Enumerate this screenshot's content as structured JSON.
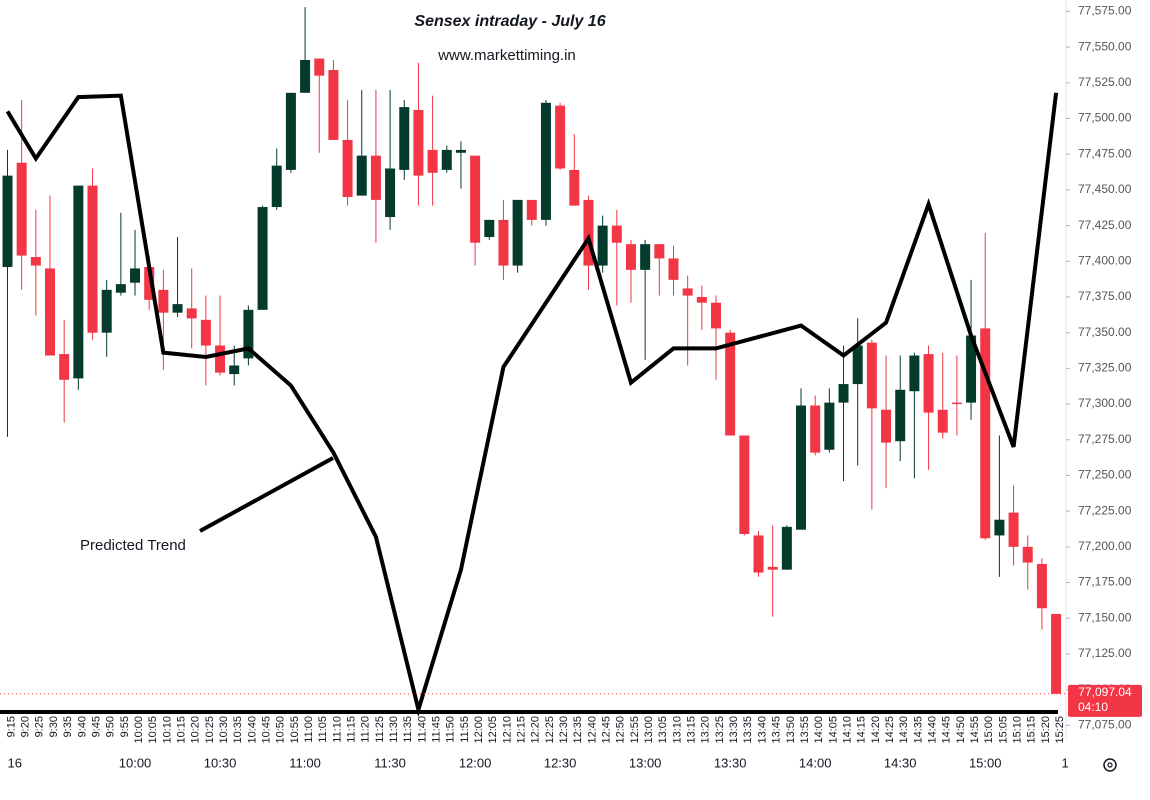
{
  "chart_data": {
    "type": "candlestick",
    "title": "Sensex intraday - July 16",
    "subtitle": "www.markettiming.in",
    "annotation": "Predicted Trend",
    "up_color": "#053b2d",
    "down_color": "#f23645",
    "categories": [
      "9:15",
      "9:20",
      "9:25",
      "9:30",
      "9:35",
      "9:40",
      "9:45",
      "9:50",
      "9:55",
      "10:00",
      "10:05",
      "10:10",
      "10:15",
      "10:20",
      "10:25",
      "10:30",
      "10:35",
      "10:40",
      "10:45",
      "10:50",
      "10:55",
      "11:00",
      "11:05",
      "11:10",
      "11:15",
      "11:20",
      "11:25",
      "11:30",
      "11:35",
      "11:40",
      "11:45",
      "11:50",
      "11:55",
      "12:00",
      "12:05",
      "12:10",
      "12:15",
      "12:20",
      "12:25",
      "12:30",
      "12:35",
      "12:40",
      "12:45",
      "12:50",
      "12:55",
      "13:00",
      "13:05",
      "13:10",
      "13:15",
      "13:20",
      "13:25",
      "13:30",
      "13:35",
      "13:40",
      "13:45",
      "13:50",
      "13:55",
      "14:00",
      "14:05",
      "14:10",
      "14:15",
      "14:20",
      "14:25",
      "14:30",
      "14:35",
      "14:40",
      "14:45",
      "14:50",
      "14:55",
      "15:00",
      "15:05",
      "15:10",
      "15:15",
      "15:20",
      "15:25"
    ],
    "open": [
      77396,
      77469,
      77403,
      77395,
      77335,
      77318,
      77453,
      77350,
      77378,
      77385,
      77396,
      77380,
      77364,
      77367,
      77359,
      77341,
      77321,
      77332,
      77366,
      77438,
      77464,
      77518,
      77542,
      77534,
      77485,
      77446,
      77474,
      77431,
      77464,
      77506,
      77478,
      77464,
      77476,
      77474,
      77417,
      77429,
      77397,
      77443,
      77429,
      77509,
      77464,
      77443,
      77397,
      77425,
      77412,
      77394,
      77412,
      77402,
      77381,
      77375,
      77371,
      77350,
      77278,
      77208,
      77186,
      77184,
      77212,
      77299,
      77268,
      77301,
      77314,
      77343,
      77296,
      77274,
      77309,
      77335,
      77296,
      77301,
      77301,
      77353,
      77208,
      77224,
      77200,
      77188,
      77153
    ],
    "high": [
      77478,
      77513,
      77436,
      77446,
      77359,
      77453,
      77465,
      77387,
      77434,
      77422,
      77404,
      77394,
      77417,
      77395,
      77376,
      77376,
      77341,
      77369,
      77439,
      77479,
      77518,
      77578,
      77542,
      77541,
      77513,
      77520,
      77520,
      77520,
      77513,
      77539,
      77516,
      77481,
      77484,
      77474,
      77429,
      77443,
      77443,
      77443,
      77513,
      77511,
      77489,
      77446,
      77432,
      77436,
      77415,
      77415,
      77412,
      77411,
      77390,
      77383,
      77376,
      77352,
      77278,
      77211,
      77215,
      77215,
      77311,
      77306,
      77311,
      77341,
      77360,
      77345,
      77334,
      77334,
      77336,
      77341,
      77336,
      77334,
      77387,
      77420,
      77278,
      77243,
      77208,
      77192,
      77153
    ],
    "low": [
      77277,
      77380,
      77362,
      77334,
      77287,
      77310,
      77345,
      77333,
      77376,
      77376,
      77366,
      77324,
      77361,
      77339,
      77313,
      77320,
      77313,
      77327,
      77366,
      77436,
      77462,
      77518,
      77476,
      77485,
      77439,
      77446,
      77413,
      77422,
      77457,
      77439,
      77439,
      77462,
      77451,
      77397,
      77415,
      77387,
      77392,
      77425,
      77425,
      77464,
      77439,
      77380,
      77392,
      77369,
      77371,
      77331,
      77376,
      77376,
      77327,
      77352,
      77317,
      77278,
      77208,
      77179,
      77151,
      77184,
      77212,
      77264,
      77266,
      77246,
      77257,
      77226,
      77241,
      77260,
      77248,
      77254,
      77276,
      77278,
      77289,
      77205,
      77179,
      77187,
      77170,
      77142,
      77097.04
    ],
    "close": [
      77460,
      77404,
      77397,
      77334,
      77317,
      77453,
      77350,
      77380,
      77384,
      77395,
      77373,
      77364,
      77370,
      77360,
      77341,
      77322,
      77327,
      77366,
      77438,
      77467,
      77518,
      77541,
      77530,
      77485,
      77445,
      77474,
      77443,
      77465,
      77508,
      77460,
      77462,
      77478,
      77478,
      77413,
      77429,
      77397,
      77443,
      77429,
      77511,
      77465,
      77439,
      77397,
      77425,
      77413,
      77394,
      77412,
      77402,
      77387,
      77376,
      77371,
      77353,
      77278,
      77209,
      77182,
      77184,
      77214,
      77299,
      77266,
      77301,
      77314,
      77341,
      77297,
      77273,
      77310,
      77334,
      77294,
      77280,
      77300,
      77348,
      77206,
      77219,
      77200,
      77189,
      77157,
      77097.04
    ],
    "trend": {
      "color": "#000000",
      "x": [
        "9:15",
        "9:25",
        "9:40",
        "9:55",
        "10:10",
        "10:25",
        "10:40",
        "10:55",
        "11:10",
        "11:25",
        "11:40",
        "11:55",
        "12:10",
        "12:40",
        "12:55",
        "13:10",
        "13:25",
        "13:55",
        "14:10",
        "14:25",
        "14:40",
        "14:55",
        "15:10",
        "15:25"
      ],
      "values": [
        77505,
        77472,
        77515,
        77516,
        77336,
        77333,
        77339,
        77313,
        77266,
        77207,
        77086,
        77184,
        77326,
        77416,
        77315,
        77339,
        77339,
        77355,
        77334,
        77357,
        77440,
        77348,
        77270,
        77518
      ]
    },
    "last_price": {
      "value": 77097.04,
      "label": "77,097.04"
    },
    "countdown": "04:10",
    "ylim": [
      77065,
      77583
    ],
    "yticks": [
      {
        "value": 77075,
        "label": "77,075.00"
      },
      {
        "value": 77100,
        "label": "77,100.00"
      },
      {
        "value": 77125,
        "label": "77,125.00"
      },
      {
        "value": 77150,
        "label": "77,150.00"
      },
      {
        "value": 77175,
        "label": "77,175.00"
      },
      {
        "value": 77200,
        "label": "77,200.00"
      },
      {
        "value": 77225,
        "label": "77,225.00"
      },
      {
        "value": 77250,
        "label": "77,250.00"
      },
      {
        "value": 77275,
        "label": "77,275.00"
      },
      {
        "value": 77300,
        "label": "77,300.00"
      },
      {
        "value": 77325,
        "label": "77,325.00"
      },
      {
        "value": 77350,
        "label": "77,350.00"
      },
      {
        "value": 77375,
        "label": "77,375.00"
      },
      {
        "value": 77400,
        "label": "77,400.00"
      },
      {
        "value": 77425,
        "label": "77,425.00"
      },
      {
        "value": 77450,
        "label": "77,450.00"
      },
      {
        "value": 77475,
        "label": "77,475.00"
      },
      {
        "value": 77500,
        "label": "77,500.00"
      },
      {
        "value": 77525,
        "label": "77,525.00"
      },
      {
        "value": 77550,
        "label": "77,550.00"
      },
      {
        "value": 77575,
        "label": "77,575.00"
      }
    ],
    "xticks": [
      {
        "value": "9:15",
        "label": "16"
      },
      "10:00",
      "10:30",
      "11:00",
      "11:30",
      "12:00",
      "12:30",
      "13:00",
      "13:30",
      "14:00",
      "14:30",
      "15:00",
      {
        "value": "15:25",
        "label": "1"
      }
    ]
  }
}
